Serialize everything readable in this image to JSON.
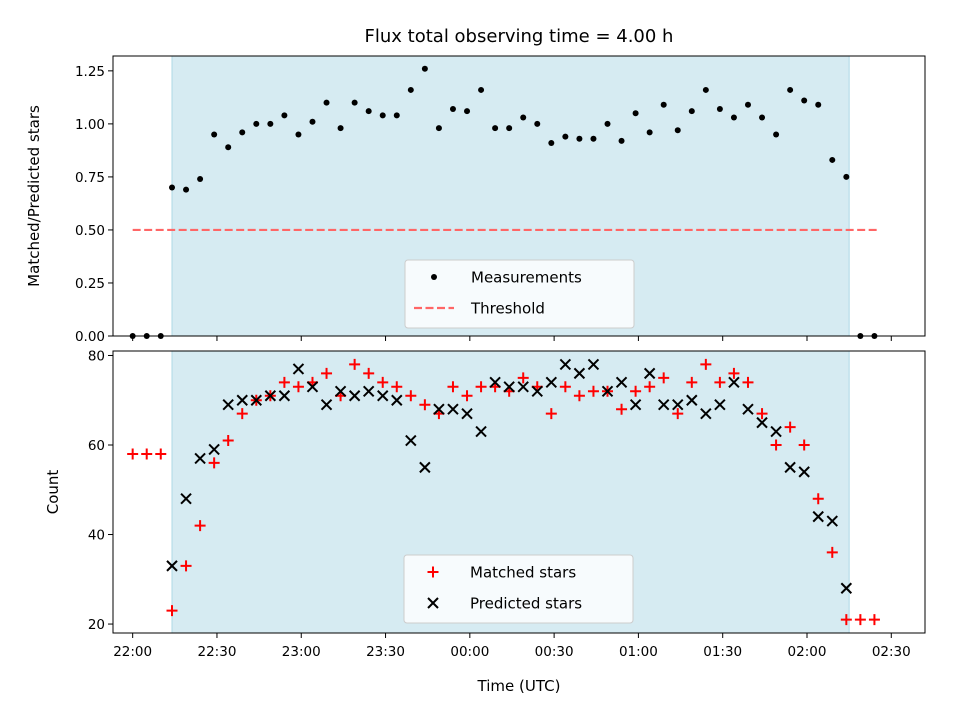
{
  "title": "Flux total observing time = 4.00 h",
  "x_tick_labels": [
    "22:00",
    "22:30",
    "23:00",
    "23:30",
    "00:00",
    "00:30",
    "01:00",
    "01:30",
    "02:00",
    "02:30"
  ],
  "colors": {
    "observing_window": "#add8e6",
    "threshold": "#ff6666",
    "measurements": "#000000",
    "matched": "#ff0000",
    "predicted": "#000000"
  },
  "chart_data": [
    {
      "type": "scatter",
      "ylabel": "Matched/Predicted stars",
      "xlabel": "",
      "x_unit": "minutes after 22:00 UTC",
      "xlim": [
        -7,
        282
      ],
      "ylim": [
        0,
        1.32
      ],
      "yticks": [
        0.0,
        0.25,
        0.5,
        0.75,
        1.0,
        1.25
      ],
      "ytick_labels": [
        "0.00",
        "0.25",
        "0.50",
        "0.75",
        "1.00",
        "1.25"
      ],
      "shaded_window": [
        14,
        255
      ],
      "threshold": {
        "name": "Threshold",
        "y": 0.5,
        "x_range": [
          0,
          265
        ]
      },
      "legend": {
        "position": "lower center",
        "entries": [
          "Measurements",
          "Threshold"
        ]
      },
      "series": [
        {
          "name": "Measurements",
          "x": [
            0,
            5,
            10,
            14,
            19,
            24,
            29,
            34,
            39,
            44,
            49,
            54,
            59,
            64,
            69,
            74,
            79,
            84,
            89,
            94,
            99,
            104,
            109,
            114,
            119,
            124,
            129,
            134,
            139,
            144,
            149,
            154,
            159,
            164,
            169,
            174,
            179,
            184,
            189,
            194,
            199,
            204,
            209,
            214,
            219,
            224,
            229,
            234,
            239,
            244,
            249,
            254,
            259,
            264
          ],
          "y": [
            0,
            0,
            0,
            0.7,
            0.69,
            0.74,
            0.95,
            0.89,
            0.96,
            1.0,
            1.0,
            1.04,
            0.95,
            1.01,
            1.1,
            0.98,
            1.1,
            1.06,
            1.04,
            1.04,
            1.16,
            1.26,
            0.98,
            1.07,
            1.06,
            1.16,
            0.98,
            0.98,
            1.03,
            1.0,
            0.91,
            0.94,
            0.93,
            0.93,
            1.0,
            0.92,
            1.05,
            0.96,
            1.09,
            0.97,
            1.06,
            1.16,
            1.07,
            1.03,
            1.09,
            1.03,
            0.95,
            1.16,
            1.11,
            1.09,
            0.83,
            0.75,
            0,
            0
          ]
        }
      ]
    },
    {
      "type": "scatter",
      "ylabel": "Count",
      "xlabel": "Time (UTC)",
      "x_unit": "minutes after 22:00 UTC",
      "xlim": [
        -7,
        282
      ],
      "ylim": [
        18,
        81
      ],
      "yticks": [
        20,
        40,
        60,
        80
      ],
      "ytick_labels": [
        "20",
        "40",
        "60",
        "80"
      ],
      "shaded_window": [
        14,
        255
      ],
      "legend": {
        "position": "lower center",
        "entries": [
          "Matched stars",
          "Predicted stars"
        ]
      },
      "series": [
        {
          "name": "Matched stars",
          "marker": "plus",
          "x": [
            0,
            5,
            10,
            14,
            19,
            24,
            29,
            34,
            39,
            44,
            49,
            54,
            59,
            64,
            69,
            74,
            79,
            84,
            89,
            94,
            99,
            104,
            109,
            114,
            119,
            124,
            129,
            134,
            139,
            144,
            149,
            154,
            159,
            164,
            169,
            174,
            179,
            184,
            189,
            194,
            199,
            204,
            209,
            214,
            219,
            224,
            229,
            234,
            239,
            244,
            249,
            254,
            259,
            264
          ],
          "y": [
            58,
            58,
            58,
            23,
            33,
            42,
            56,
            61,
            67,
            70,
            71,
            74,
            73,
            74,
            76,
            71,
            78,
            76,
            74,
            73,
            71,
            69,
            67,
            73,
            71,
            73,
            73,
            72,
            75,
            73,
            67,
            73,
            71,
            72,
            72,
            68,
            72,
            73,
            75,
            67,
            74,
            78,
            74,
            76,
            74,
            67,
            60,
            64,
            60,
            48,
            36,
            21,
            21,
            21
          ]
        },
        {
          "name": "Predicted stars",
          "marker": "x",
          "x": [
            14,
            19,
            24,
            29,
            34,
            39,
            44,
            49,
            54,
            59,
            64,
            69,
            74,
            79,
            84,
            89,
            94,
            99,
            104,
            109,
            114,
            119,
            124,
            129,
            134,
            139,
            144,
            149,
            154,
            159,
            164,
            169,
            174,
            179,
            184,
            189,
            194,
            199,
            204,
            209,
            214,
            219,
            224,
            229,
            234,
            239,
            244,
            249,
            254
          ],
          "y": [
            33,
            48,
            57,
            59,
            69,
            70,
            70,
            71,
            71,
            77,
            73,
            69,
            72,
            71,
            72,
            71,
            70,
            61,
            55,
            68,
            68,
            67,
            63,
            74,
            73,
            73,
            72,
            74,
            78,
            76,
            78,
            72,
            74,
            69,
            76,
            69,
            69,
            70,
            67,
            69,
            74,
            68,
            65,
            63,
            55,
            54,
            44,
            43,
            28
          ]
        }
      ]
    }
  ]
}
